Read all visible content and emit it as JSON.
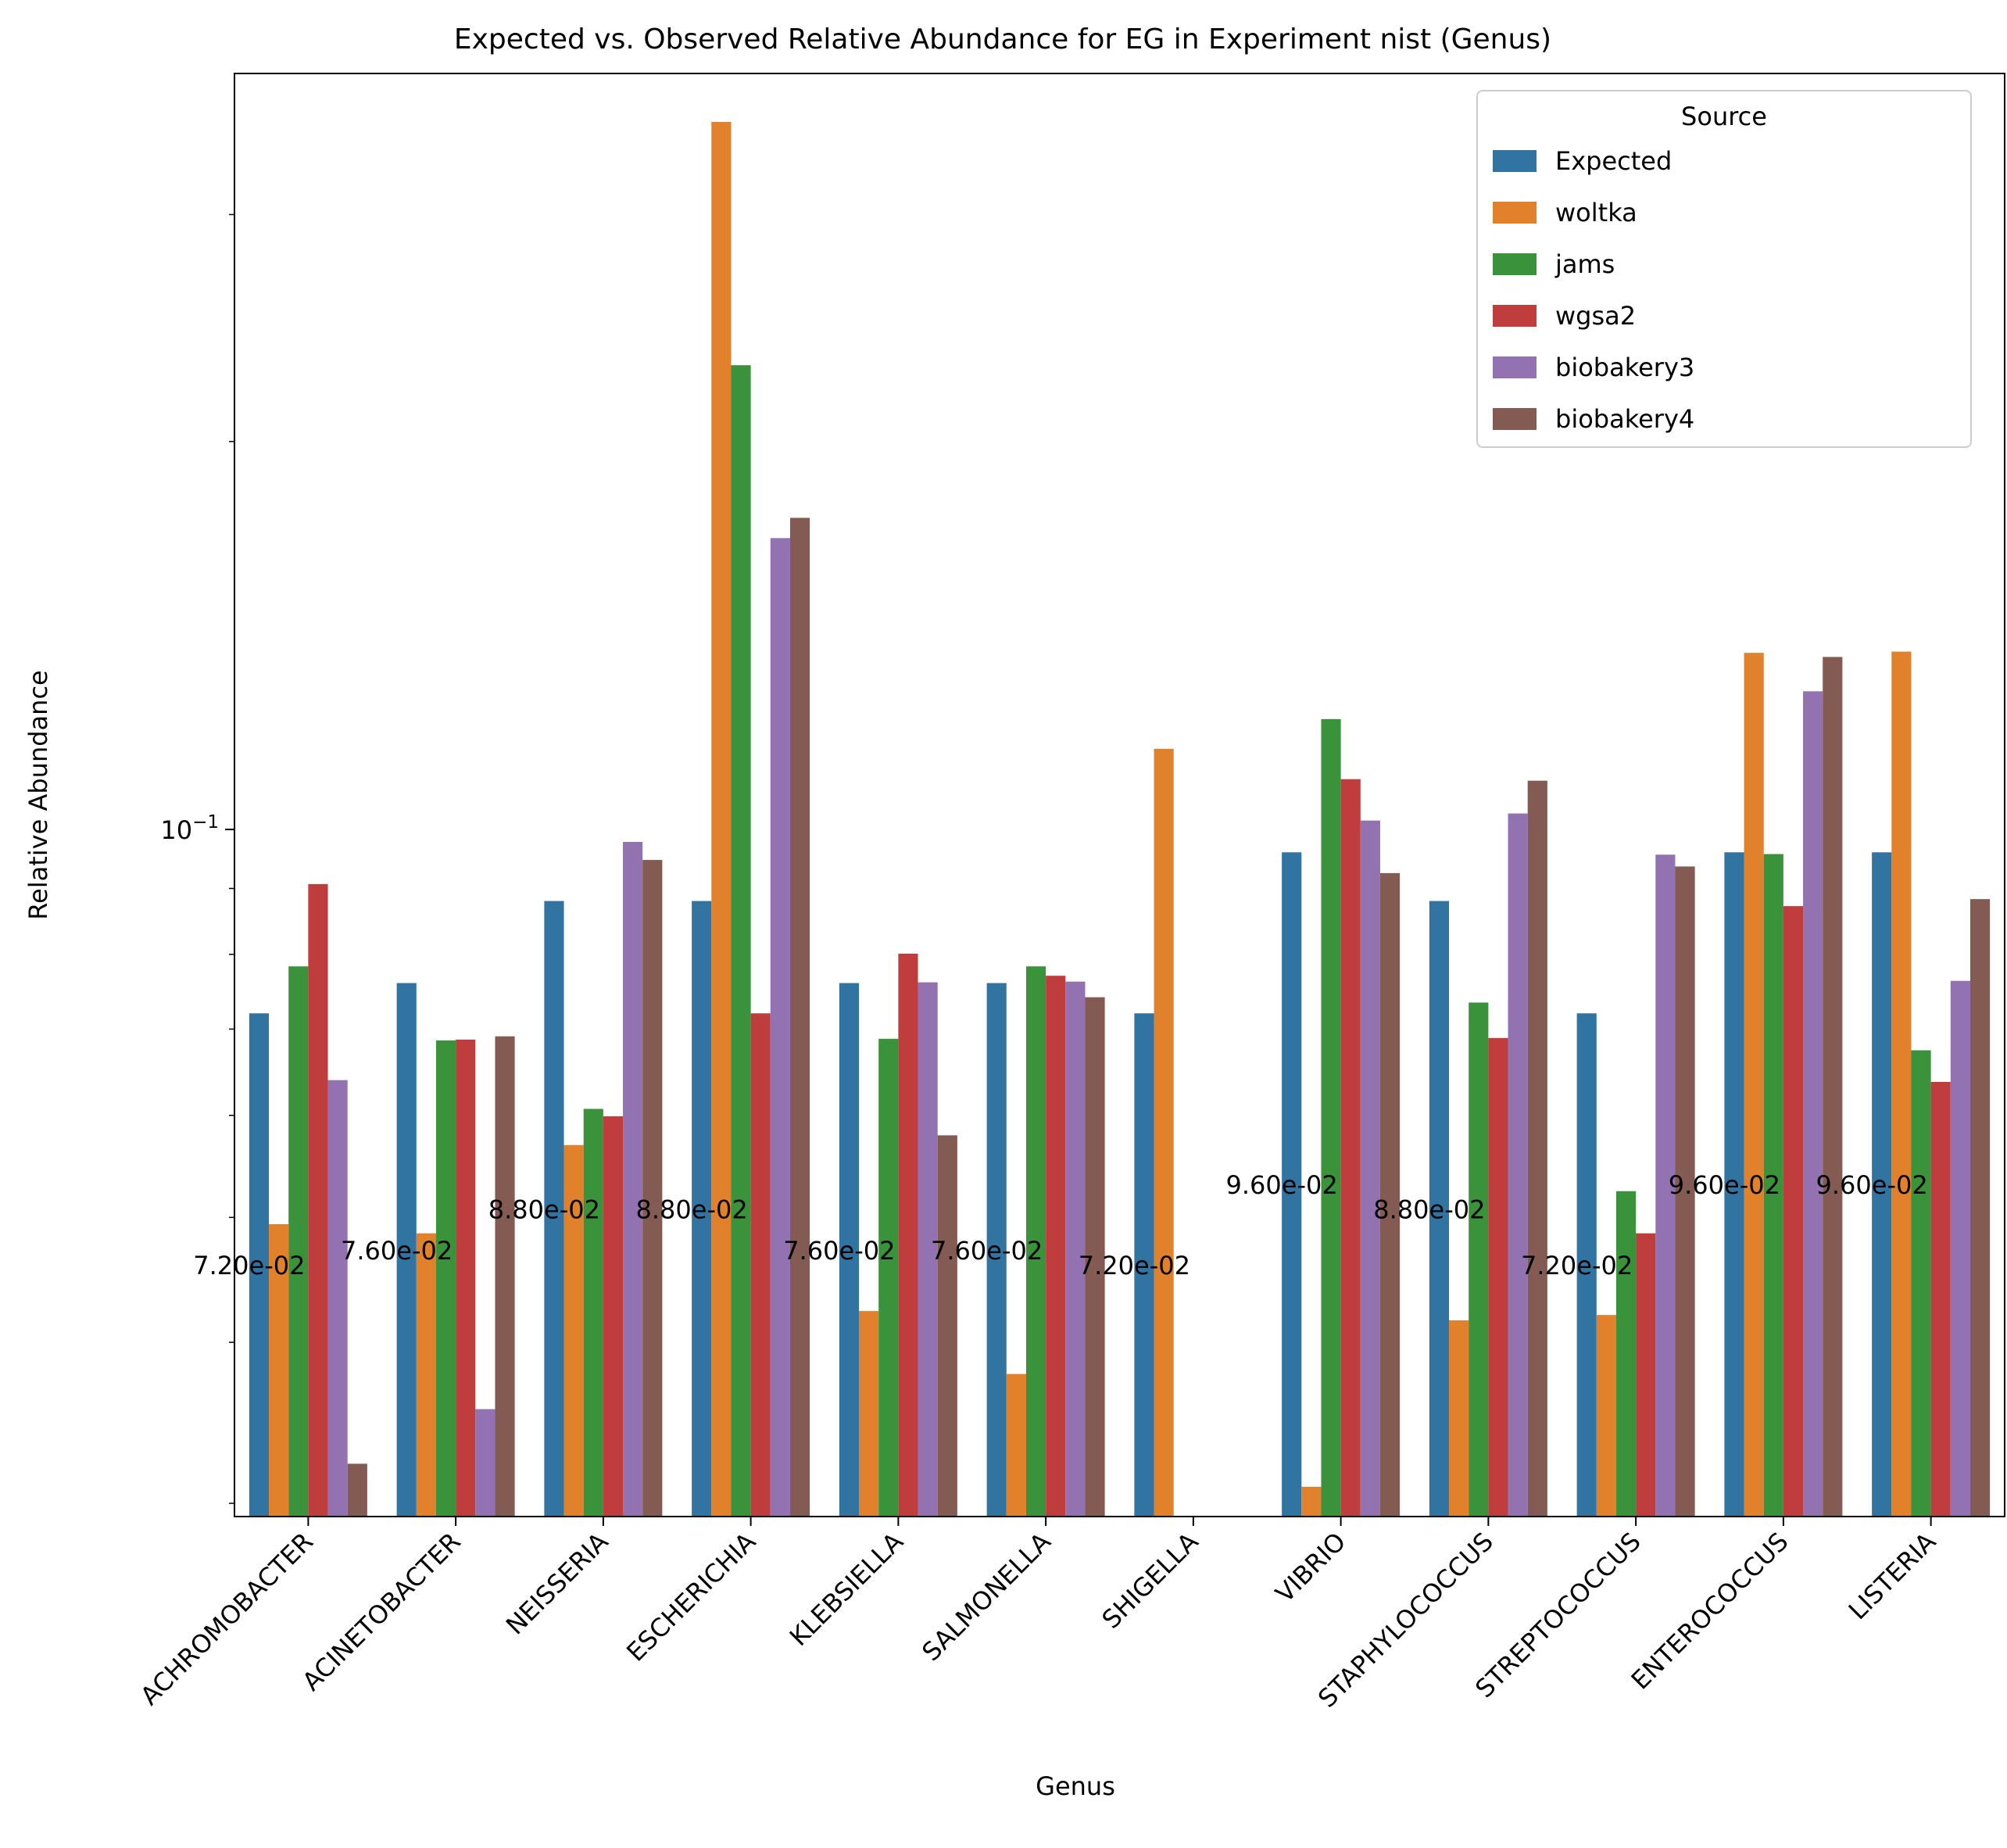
{
  "chart_data": {
    "type": "bar",
    "title": "Expected vs. Observed Relative Abundance for EG in Experiment nist (Genus)",
    "xlabel": "Genus",
    "ylabel": "Relative Abundance",
    "yscale": "log",
    "ylim": [
      0.0293,
      0.386
    ],
    "y_major_ticks": [
      {
        "value": 0.1,
        "base": "10",
        "exponent": "−1"
      }
    ],
    "y_minor_ticks": [
      0.03,
      0.04,
      0.05,
      0.06,
      0.07,
      0.08,
      0.09,
      0.2,
      0.3
    ],
    "legend": {
      "title": "Source",
      "position": "top-right"
    },
    "categories": [
      "ACHROMOBACTER",
      "ACINETOBACTER",
      "NEISSERIA",
      "ESCHERICHIA",
      "KLEBSIELLA",
      "SALMONELLA",
      "SHIGELLA",
      "VIBRIO",
      "STAPHYLOCOCCUS",
      "STREPTOCOCCUS",
      "ENTEROCOCCUS",
      "LISTERIA"
    ],
    "series": [
      {
        "name": "Expected",
        "color": "#3274a1",
        "values": [
          0.072,
          0.076,
          0.088,
          0.088,
          0.076,
          0.076,
          0.072,
          0.096,
          0.088,
          0.072,
          0.096,
          0.096
        ]
      },
      {
        "name": "woltka",
        "color": "#e1812c",
        "values": [
          0.0494,
          0.0486,
          0.0569,
          0.354,
          0.0423,
          0.0378,
          0.1155,
          0.0309,
          0.0416,
          0.042,
          0.1371,
          0.1374
        ]
      },
      {
        "name": "jams",
        "color": "#3a923a",
        "values": [
          0.0783,
          0.0686,
          0.0607,
          0.2292,
          0.0688,
          0.0783,
          null,
          0.1218,
          0.0734,
          0.0524,
          0.0957,
          0.0674
        ]
      },
      {
        "name": "wgsa2",
        "color": "#c03d3e",
        "values": [
          0.0907,
          0.0687,
          0.0599,
          0.072,
          0.0801,
          0.077,
          null,
          0.1094,
          0.0689,
          0.0486,
          0.0872,
          0.0637
        ]
      },
      {
        "name": "biobakery3",
        "color": "#9372b2",
        "values": [
          0.0639,
          0.0355,
          0.0978,
          0.1683,
          0.0761,
          0.0762,
          null,
          0.1016,
          0.1029,
          0.0956,
          0.128,
          0.0763
        ]
      },
      {
        "name": "biobakery4",
        "color": "#845b53",
        "values": [
          0.0322,
          0.0691,
          0.0947,
          0.1745,
          0.0579,
          0.0741,
          null,
          0.0925,
          0.1091,
          0.0936,
          0.1361,
          0.0883
        ]
      }
    ],
    "annotations": [
      "7.20e-02",
      "7.60e-02",
      "8.80e-02",
      "8.80e-02",
      "7.60e-02",
      "7.60e-02",
      "7.20e-02",
      "9.60e-02",
      "8.80e-02",
      "7.20e-02",
      "9.60e-02",
      "9.60e-02"
    ],
    "grid": false
  }
}
